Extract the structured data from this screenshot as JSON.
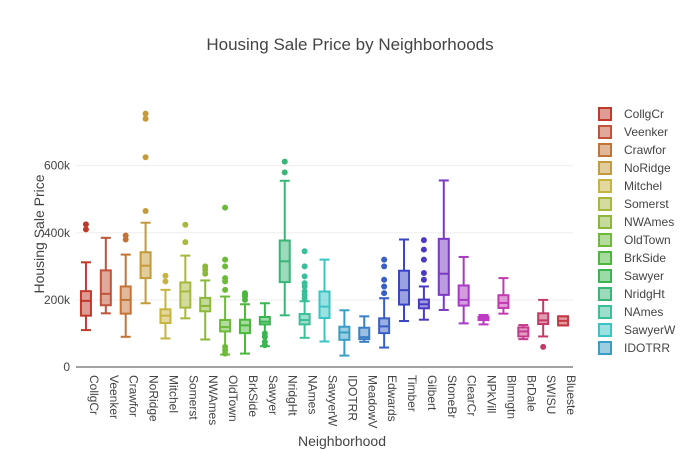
{
  "chart_data": {
    "type": "box",
    "title": "Housing Sale Price by Neighborhoods",
    "xlabel": "Neighborhood",
    "ylabel": "Housing Sale Price",
    "ylim": [
      0,
      760000
    ],
    "yticks": [
      0,
      200000,
      400000,
      600000
    ],
    "ytick_labels": [
      "0",
      "200k",
      "400k",
      "600k"
    ],
    "grid": true,
    "legend_position": "right",
    "series": [
      {
        "name": "CollgCr",
        "color": "#c0392b",
        "min": 110000,
        "q1": 153000,
        "median": 197000,
        "q3": 226000,
        "max": 312000,
        "outliers": [
          410000,
          425000
        ]
      },
      {
        "name": "Veenker",
        "color": "#c0533a",
        "min": 160000,
        "q1": 184000,
        "median": 218000,
        "q3": 288000,
        "max": 385000,
        "outliers": []
      },
      {
        "name": "Crawfor",
        "color": "#c47335",
        "min": 90000,
        "q1": 159000,
        "median": 200000,
        "q3": 240000,
        "max": 335000,
        "outliers": [
          380000,
          392000
        ]
      },
      {
        "name": "NoRidge",
        "color": "#c49a3a",
        "min": 190000,
        "q1": 265000,
        "median": 302000,
        "q3": 342000,
        "max": 430000,
        "outliers": [
          465000,
          625000,
          740000,
          755000
        ]
      },
      {
        "name": "Mitchel",
        "color": "#c7b440",
        "min": 85000,
        "q1": 131000,
        "median": 153000,
        "q3": 172000,
        "max": 230000,
        "outliers": [
          255000,
          272000
        ]
      },
      {
        "name": "Somerst",
        "color": "#a8b83c",
        "min": 145000,
        "q1": 177000,
        "median": 225000,
        "q3": 252000,
        "max": 332000,
        "outliers": [
          372000,
          424000
        ]
      },
      {
        "name": "NWAmes",
        "color": "#8cb83a",
        "min": 82000,
        "q1": 166000,
        "median": 182000,
        "q3": 206000,
        "max": 258000,
        "outliers": [
          278000,
          290000,
          300000
        ]
      },
      {
        "name": "OldTown",
        "color": "#6cba3a",
        "min": 37000,
        "q1": 106000,
        "median": 119000,
        "q3": 140000,
        "max": 210000,
        "outliers": [
          40000,
          50000,
          60000,
          230000,
          255000,
          265000,
          300000,
          320000,
          475000
        ]
      },
      {
        "name": "BrkSide",
        "color": "#4bb83c",
        "min": 40000,
        "q1": 101000,
        "median": 124000,
        "q3": 141000,
        "max": 187000,
        "outliers": [
          200000,
          210000,
          215000,
          220000
        ]
      },
      {
        "name": "Sawyer",
        "color": "#3ab552",
        "min": 62000,
        "q1": 127000,
        "median": 135000,
        "q3": 149000,
        "max": 190000,
        "outliers": [
          65000,
          75000,
          90000,
          100000
        ]
      },
      {
        "name": "NridgHt",
        "color": "#3ab578",
        "min": 154000,
        "q1": 253000,
        "median": 315000,
        "q3": 377000,
        "max": 555000,
        "outliers": [
          580000,
          612000
        ]
      },
      {
        "name": "NAmes",
        "color": "#3abf9a",
        "min": 87000,
        "q1": 127000,
        "median": 140000,
        "q3": 158000,
        "max": 196000,
        "outliers": [
          205000,
          215000,
          225000,
          240000,
          250000,
          270000,
          300000,
          345000
        ]
      },
      {
        "name": "SawyerW",
        "color": "#3ac4c4",
        "min": 76000,
        "q1": 146000,
        "median": 180000,
        "q3": 225000,
        "max": 320000,
        "outliers": []
      },
      {
        "name": "IDOTRR",
        "color": "#3a9ec4",
        "min": 34000,
        "q1": 81000,
        "median": 103000,
        "q3": 120000,
        "max": 169000,
        "outliers": []
      },
      {
        "name": "MeadowV",
        "color": "#3a7fc4",
        "min": 75000,
        "q1": 83000,
        "median": 89000,
        "q3": 117000,
        "max": 151000,
        "outliers": []
      },
      {
        "name": "Edwards",
        "color": "#3a5fc4",
        "min": 58000,
        "q1": 101000,
        "median": 121000,
        "q3": 145000,
        "max": 205000,
        "outliers": [
          220000,
          240000,
          260000,
          300000,
          320000
        ]
      },
      {
        "name": "Timber",
        "color": "#3a45c0",
        "min": 137000,
        "q1": 186000,
        "median": 229000,
        "q3": 287000,
        "max": 380000,
        "outliers": []
      },
      {
        "name": "Gilbert",
        "color": "#4a3ac4",
        "min": 141000,
        "q1": 175000,
        "median": 187000,
        "q3": 201000,
        "max": 240000,
        "outliers": [
          260000,
          280000,
          320000,
          350000,
          378000
        ]
      },
      {
        "name": "StoneBr",
        "color": "#7a3ac4",
        "min": 170000,
        "q1": 215000,
        "median": 278000,
        "q3": 382000,
        "max": 556000,
        "outliers": []
      },
      {
        "name": "ClearCr",
        "color": "#a83ac4",
        "min": 130000,
        "q1": 183000,
        "median": 200000,
        "q3": 243000,
        "max": 328000,
        "outliers": []
      },
      {
        "name": "NPkVill",
        "color": "#bf3ac4",
        "min": 127000,
        "q1": 140000,
        "median": 146000,
        "q3": 149000,
        "max": 155000,
        "outliers": []
      },
      {
        "name": "Blmngtn",
        "color": "#c43ab0",
        "min": 159000,
        "q1": 176000,
        "median": 191000,
        "q3": 214000,
        "max": 265000,
        "outliers": []
      },
      {
        "name": "BrDale",
        "color": "#c43a8c",
        "min": 83000,
        "q1": 91000,
        "median": 106000,
        "q3": 118000,
        "max": 125000,
        "outliers": []
      },
      {
        "name": "SWISU",
        "color": "#c43a66",
        "min": 91000,
        "q1": 128000,
        "median": 139000,
        "q3": 160000,
        "max": 200000,
        "outliers": [
          60000
        ]
      },
      {
        "name": "Blueste",
        "color": "#c43a44",
        "min": 124000,
        "q1": 124000,
        "median": 137500,
        "q3": 151000,
        "max": 151000,
        "outliers": []
      }
    ],
    "legend_entries": [
      "CollgCr",
      "Veenker",
      "Crawfor",
      "NoRidge",
      "Mitchel",
      "Somerst",
      "NWAmes",
      "OldTown",
      "BrkSide",
      "Sawyer",
      "NridgHt",
      "NAmes",
      "SawyerW",
      "IDOTRR"
    ]
  }
}
